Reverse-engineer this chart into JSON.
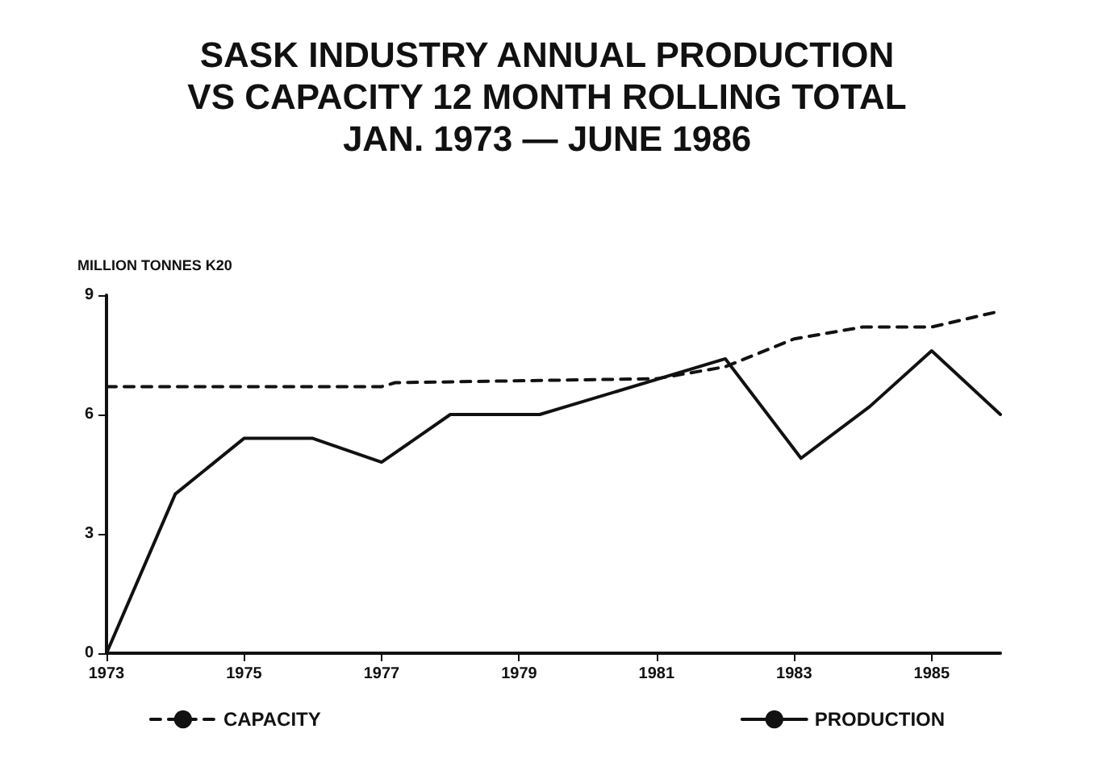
{
  "chart_data": {
    "type": "line",
    "title": "SASK INDUSTRY ANNUAL PRODUCTION\nVS CAPACITY 12 MONTH ROLLING TOTAL\nJAN. 1973 — JUNE 1986",
    "ylabel": "MILLION TONNES K20",
    "series": [
      {
        "name": "CAPACITY",
        "color": "#111111",
        "line_style": "dashed",
        "x": [
          1973,
          1977,
          1977.2,
          1981,
          1982,
          1983,
          1984,
          1985,
          1986
        ],
        "values": [
          6.7,
          6.7,
          6.8,
          6.9,
          7.2,
          7.9,
          8.2,
          8.2,
          8.6
        ]
      },
      {
        "name": "PRODUCTION",
        "color": "#111111",
        "line_style": "solid",
        "x": [
          1973,
          1974,
          1975,
          1976,
          1977,
          1978,
          1979.3,
          1982,
          1983.1,
          1984.1,
          1985,
          1986
        ],
        "values": [
          0,
          4.0,
          5.4,
          5.4,
          4.8,
          6.0,
          6.0,
          7.4,
          4.9,
          6.2,
          7.6,
          6.0
        ]
      }
    ],
    "xlim": [
      1973,
      1986
    ],
    "xticks": [
      1973,
      1975,
      1977,
      1979,
      1981,
      1983,
      1985
    ],
    "ylim": [
      0,
      9
    ],
    "yticks": [
      0,
      3,
      6,
      9
    ],
    "grid": false,
    "legend": "bottom",
    "marker": "none"
  }
}
